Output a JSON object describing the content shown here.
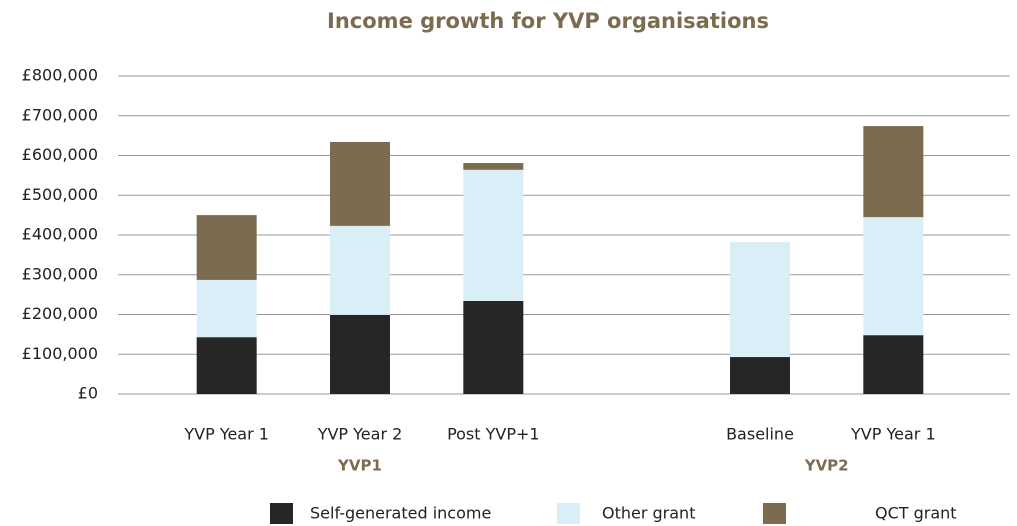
{
  "chart_data": {
    "type": "stacked_bar",
    "title": "Income growth for YVP organisations",
    "categories": [
      "YVP Year 1",
      "YVP Year 2",
      "Post YVP+1",
      null,
      "Baseline",
      "YVP Year 1"
    ],
    "group_labels": [
      "YVP1",
      "YVP2"
    ],
    "series": [
      {
        "name": "Self-generated income",
        "color": "#262626",
        "values": [
          143000,
          199000,
          234000,
          null,
          93000,
          148000
        ]
      },
      {
        "name": "Other grant",
        "color": "#daeef8",
        "values": [
          144000,
          224000,
          330000,
          null,
          289000,
          297000
        ]
      },
      {
        "name": "QCT grant",
        "color": "#7b6b4f",
        "values": [
          163000,
          211000,
          17000,
          null,
          0,
          229000
        ]
      }
    ],
    "ylim": [
      0,
      800000
    ],
    "yticks": [
      {
        "value": 0,
        "label": "£0"
      },
      {
        "value": 100000,
        "label": "£100,000"
      },
      {
        "value": 200000,
        "label": "£200,000"
      },
      {
        "value": 300000,
        "label": "£300,000"
      },
      {
        "value": 400000,
        "label": "£400,000"
      },
      {
        "value": 500000,
        "label": "£500,000"
      },
      {
        "value": 600000,
        "label": "£600,000"
      },
      {
        "value": 700000,
        "label": "£700,000"
      },
      {
        "value": 800000,
        "label": "£800,000"
      }
    ],
    "grid": true
  }
}
